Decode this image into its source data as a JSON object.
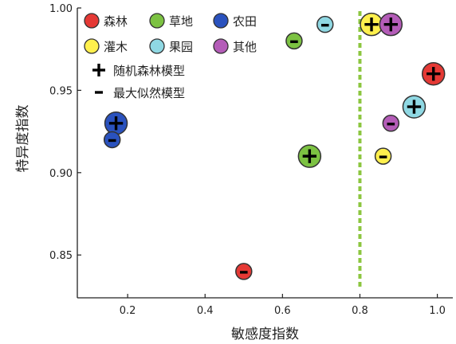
{
  "chart_data": {
    "type": "scatter",
    "xlabel": "敏感度指数",
    "ylabel": "特异度指数",
    "xlim": [
      0.07,
      1.04
    ],
    "ylim": [
      0.824,
      1.0
    ],
    "xticks": [
      0.2,
      0.4,
      0.6,
      0.8,
      1.0
    ],
    "xtick_labels": [
      "0.2",
      "0.4",
      "0.6",
      "0.8",
      "1.0"
    ],
    "yticks": [
      0.85,
      0.9,
      0.95,
      1.0
    ],
    "ytick_labels": [
      "0.85",
      "0.90",
      "0.95",
      "1.00"
    ],
    "threshold_line": {
      "x": 0.8,
      "style": "dashed",
      "color": "#8cc63f"
    },
    "model_markers": [
      {
        "key": "rf",
        "symbol": "plus",
        "label": "随机森林模型"
      },
      {
        "key": "ml",
        "symbol": "minus",
        "label": "最大似然模型"
      }
    ],
    "series": [
      {
        "name": "森林",
        "color": "#e53935",
        "points": [
          {
            "model": "rf",
            "x": 0.99,
            "y": 0.96
          },
          {
            "model": "ml",
            "x": 0.5,
            "y": 0.84
          }
        ]
      },
      {
        "name": "草地",
        "color": "#7cc242",
        "points": [
          {
            "model": "rf",
            "x": 0.67,
            "y": 0.91
          },
          {
            "model": "ml",
            "x": 0.63,
            "y": 0.98
          }
        ]
      },
      {
        "name": "农田",
        "color": "#2a52be",
        "points": [
          {
            "model": "rf",
            "x": 0.17,
            "y": 0.93
          },
          {
            "model": "ml",
            "x": 0.16,
            "y": 0.92
          }
        ]
      },
      {
        "name": "灌木",
        "color": "#fff04d",
        "points": [
          {
            "model": "rf",
            "x": 0.83,
            "y": 0.99
          },
          {
            "model": "ml",
            "x": 0.86,
            "y": 0.91
          }
        ]
      },
      {
        "name": "果园",
        "color": "#8fd8e3",
        "points": [
          {
            "model": "rf",
            "x": 0.94,
            "y": 0.94
          },
          {
            "model": "ml",
            "x": 0.71,
            "y": 0.99
          }
        ]
      },
      {
        "name": "其他",
        "color": "#b45cb8",
        "points": [
          {
            "model": "rf",
            "x": 0.88,
            "y": 0.99
          },
          {
            "model": "ml",
            "x": 0.88,
            "y": 0.93
          }
        ]
      }
    ],
    "legend_position": "top-left",
    "grid": false
  }
}
